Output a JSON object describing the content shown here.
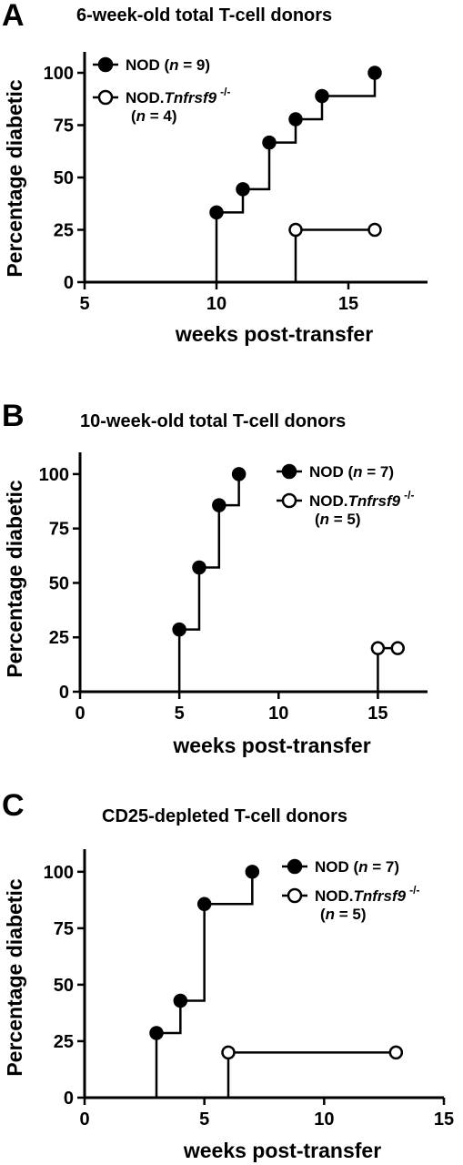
{
  "chart_data": [
    {
      "type": "line",
      "panel_label": "A",
      "title": "6-week-old total T-cell donors",
      "xlabel": "weeks post-transfer",
      "ylabel": "Percentage diabetic",
      "xlim": [
        5,
        18
      ],
      "ylim": [
        0,
        110
      ],
      "xticks": [
        5,
        10,
        15
      ],
      "yticks": [
        0,
        25,
        50,
        75,
        100
      ],
      "legend_position": "top-left",
      "series": [
        {
          "name": "NOD",
          "n_label": "n",
          "n_value": "9",
          "marker": "filled",
          "x": [
            10,
            11,
            12,
            13,
            14,
            16
          ],
          "y": [
            33.3,
            44.4,
            66.7,
            77.8,
            88.9,
            100
          ]
        },
        {
          "name": "NOD.",
          "gene": "Tnfrsf9",
          "superscript": "-/-",
          "n_label": "n",
          "n_value": "4",
          "marker": "open",
          "x": [
            13,
            16
          ],
          "y": [
            25,
            25
          ]
        }
      ]
    },
    {
      "type": "line",
      "panel_label": "B",
      "title": "10-week-old total T-cell donors",
      "xlabel": "weeks post-transfer",
      "ylabel": "Percentage diabetic",
      "xlim": [
        0,
        17.5
      ],
      "ylim": [
        0,
        110
      ],
      "xticks": [
        0,
        5,
        10,
        15
      ],
      "yticks": [
        0,
        25,
        50,
        75,
        100
      ],
      "legend_position": "top-right",
      "series": [
        {
          "name": "NOD",
          "n_label": "n",
          "n_value": "7",
          "marker": "filled",
          "x": [
            5,
            6,
            7,
            8
          ],
          "y": [
            28.6,
            57.1,
            85.7,
            100
          ]
        },
        {
          "name": "NOD.",
          "gene": "Tnfrsf9",
          "superscript": "-/-",
          "n_label": "n",
          "n_value": "5",
          "marker": "open",
          "x": [
            15,
            16
          ],
          "y": [
            20,
            20
          ]
        }
      ]
    },
    {
      "type": "line",
      "panel_label": "C",
      "title": "CD25-depleted T-cell donors",
      "xlabel": "weeks post-transfer",
      "ylabel": "Percentage diabetic",
      "xlim": [
        0,
        15
      ],
      "ylim": [
        0,
        110
      ],
      "xticks": [
        0,
        5,
        10,
        15
      ],
      "yticks": [
        0,
        25,
        50,
        75,
        100
      ],
      "legend_position": "top-right",
      "series": [
        {
          "name": "NOD",
          "n_label": "n",
          "n_value": "7",
          "marker": "filled",
          "x": [
            3,
            4,
            5,
            7
          ],
          "y": [
            28.6,
            42.9,
            85.7,
            100
          ]
        },
        {
          "name": "NOD.",
          "gene": "Tnfrsf9",
          "superscript": "-/-",
          "n_label": "n",
          "n_value": "5",
          "marker": "open",
          "x": [
            6,
            13
          ],
          "y": [
            20,
            20
          ]
        }
      ]
    }
  ]
}
